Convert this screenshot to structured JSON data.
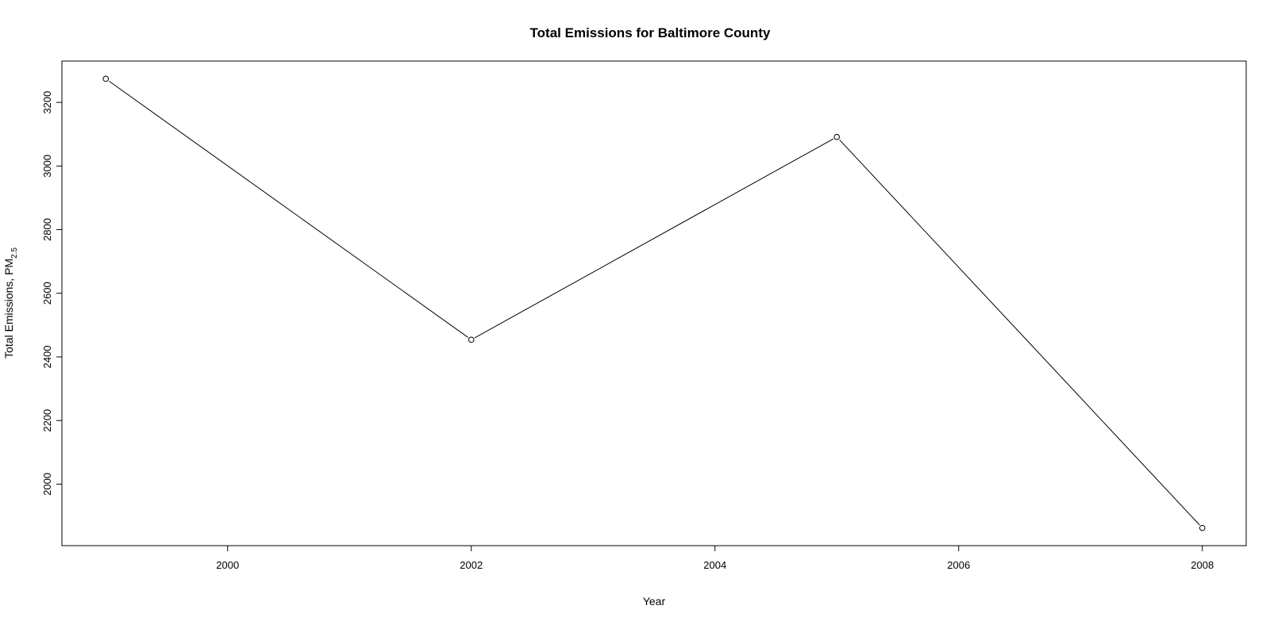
{
  "chart_data": {
    "type": "line",
    "title": "Total Emissions for Baltimore County",
    "xlabel": "Year",
    "ylabel": "Total Emissions, PM",
    "ylabel_subscript": "2.5",
    "x": [
      1999,
      2002,
      2005,
      2008
    ],
    "series": [
      {
        "values": [
          3274.18,
          2453.92,
          3091.35,
          1862.28
        ]
      }
    ],
    "xlim": [
      1998.64,
      2008.36
    ],
    "ylim": [
      1806.6,
      3329.9
    ],
    "xticks": [
      2000,
      2002,
      2004,
      2006,
      2008
    ],
    "yticks": [
      2000,
      2200,
      2400,
      2600,
      2800,
      3000,
      3200
    ],
    "markers": "open-circle",
    "grid": false,
    "legend": "none"
  }
}
